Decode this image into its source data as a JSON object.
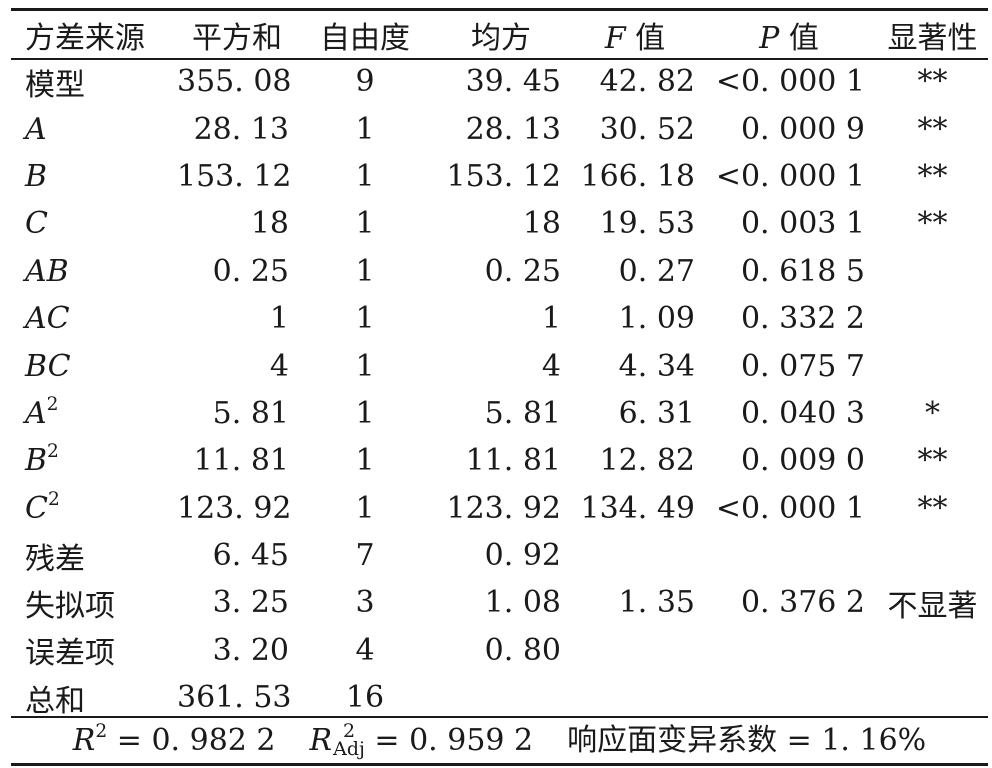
{
  "table": {
    "headers": {
      "source": "方差来源",
      "ss": "平方和",
      "df": "自由度",
      "ms": "均方",
      "f_var": "F",
      "f_suffix": " 值",
      "p_var": "P",
      "p_suffix": " 值",
      "sig": "显著性"
    },
    "rows": [
      {
        "source": "模型",
        "sup": "",
        "italic": false,
        "ss": "355. 08",
        "df": "9",
        "ms": "39. 45",
        "f": "42. 82",
        "p": "<0. 000 1",
        "sig": "**"
      },
      {
        "source": "A",
        "sup": "",
        "italic": true,
        "ss": "28. 13",
        "df": "1",
        "ms": "28. 13",
        "f": "30. 52",
        "p": "0. 000 9",
        "sig": "**"
      },
      {
        "source": "B",
        "sup": "",
        "italic": true,
        "ss": "153. 12",
        "df": "1",
        "ms": "153. 12",
        "f": "166. 18",
        "p": "<0. 000 1",
        "sig": "**"
      },
      {
        "source": "C",
        "sup": "",
        "italic": true,
        "ss": "18",
        "df": "1",
        "ms": "18",
        "f": "19. 53",
        "p": "0. 003 1",
        "sig": "**"
      },
      {
        "source": "AB",
        "sup": "",
        "italic": true,
        "ss": "0. 25",
        "df": "1",
        "ms": "0. 25",
        "f": "0. 27",
        "p": "0. 618 5",
        "sig": ""
      },
      {
        "source": "AC",
        "sup": "",
        "italic": true,
        "ss": "1",
        "df": "1",
        "ms": "1",
        "f": "1. 09",
        "p": "0. 332 2",
        "sig": ""
      },
      {
        "source": "BC",
        "sup": "",
        "italic": true,
        "ss": "4",
        "df": "1",
        "ms": "4",
        "f": "4. 34",
        "p": "0. 075 7",
        "sig": ""
      },
      {
        "source": "A",
        "sup": "2",
        "italic": true,
        "ss": "5. 81",
        "df": "1",
        "ms": "5. 81",
        "f": "6. 31",
        "p": "0. 040 3",
        "sig": "*"
      },
      {
        "source": "B",
        "sup": "2",
        "italic": true,
        "ss": "11. 81",
        "df": "1",
        "ms": "11. 81",
        "f": "12. 82",
        "p": "0. 009 0",
        "sig": "**"
      },
      {
        "source": "C",
        "sup": "2",
        "italic": true,
        "ss": "123. 92",
        "df": "1",
        "ms": "123. 92",
        "f": "134. 49",
        "p": "<0. 000 1",
        "sig": "**"
      },
      {
        "source": "残差",
        "sup": "",
        "italic": false,
        "ss": "6. 45",
        "df": "7",
        "ms": "0. 92",
        "f": "",
        "p": "",
        "sig": ""
      },
      {
        "source": "失拟项",
        "sup": "",
        "italic": false,
        "ss": "3. 25",
        "df": "3",
        "ms": "1. 08",
        "f": "1. 35",
        "p": "0. 376 2",
        "sig": "不显著"
      },
      {
        "source": "误差项",
        "sup": "",
        "italic": false,
        "ss": "3. 20",
        "df": "4",
        "ms": "0. 80",
        "f": "",
        "p": "",
        "sig": ""
      },
      {
        "source": "总和",
        "sup": "",
        "italic": false,
        "ss": "361. 53",
        "df": "16",
        "ms": "",
        "f": "",
        "p": "",
        "sig": ""
      }
    ]
  },
  "footer": {
    "r2_symbol": "R",
    "r2_sup": "2",
    "r2_value": " = 0. 982 2",
    "radj_symbol": "R",
    "radj_sup": "2",
    "radj_sub": "Adj",
    "radj_value": " = 0. 959 2",
    "cv_text": "响应面变异系数 = 1. 16%"
  }
}
